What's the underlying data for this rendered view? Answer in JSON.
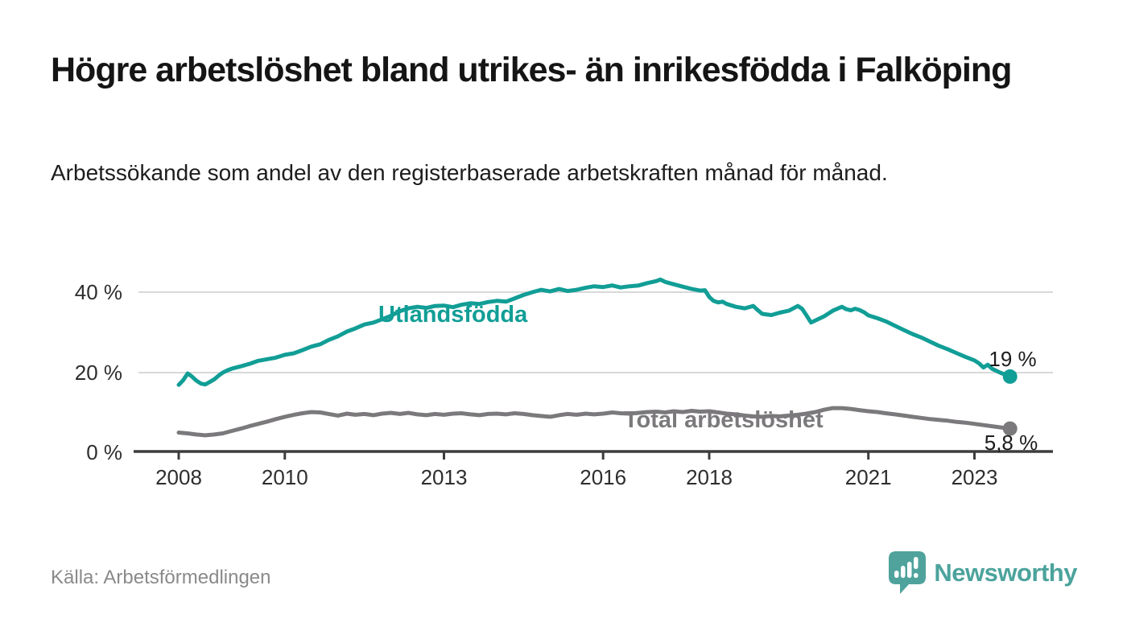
{
  "header": {
    "title": "Högre arbetslöshet bland utrikes- än inrikesfödda i Falköping",
    "subtitle": "Arbetssökande som andel av den registerbaserade arbetskraften månad för månad."
  },
  "footer": {
    "source": "Källa: Arbetsförmedlingen",
    "brand": "Newsworthy"
  },
  "colors": {
    "utlandsfodda": "#119E96",
    "total": "#7B797C",
    "grid": "#d8d8d8",
    "axis": "#3d3d3d",
    "brand_teal": "#4BA39C"
  },
  "chart_data": {
    "type": "line",
    "title": "Högre arbetslöshet bland utrikes- än inrikesfödda i Falköping",
    "subtitle": "Arbetssökande som andel av den registerbaserade arbetskraften månad för månad.",
    "xlabel": "",
    "ylabel": "",
    "unit": "%",
    "grid": "horizontal",
    "legend_position": "inline-labels",
    "xlim": [
      2007.1,
      2024.5
    ],
    "ylim": [
      0,
      47
    ],
    "x_ticks": [
      2008,
      2010,
      2013,
      2016,
      2018,
      2021,
      2023
    ],
    "y_ticks": [
      {
        "value": 0,
        "label": "0 %"
      },
      {
        "value": 20,
        "label": "20 %"
      },
      {
        "value": 40,
        "label": "40 %"
      }
    ],
    "series": [
      {
        "name": "Utlandsfödda",
        "color": "#119E96",
        "end_label": "19 %",
        "end_value": 19,
        "points": [
          [
            2008.0,
            16.9
          ],
          [
            2008.08,
            18.0
          ],
          [
            2008.17,
            19.8
          ],
          [
            2008.25,
            19.0
          ],
          [
            2008.33,
            18.0
          ],
          [
            2008.42,
            17.2
          ],
          [
            2008.5,
            17.0
          ],
          [
            2008.58,
            17.6
          ],
          [
            2008.67,
            18.3
          ],
          [
            2008.75,
            19.2
          ],
          [
            2008.83,
            20.0
          ],
          [
            2008.92,
            20.6
          ],
          [
            2009.0,
            21.0
          ],
          [
            2009.17,
            21.6
          ],
          [
            2009.33,
            22.2
          ],
          [
            2009.5,
            23.0
          ],
          [
            2009.67,
            23.4
          ],
          [
            2009.83,
            23.8
          ],
          [
            2010.0,
            24.5
          ],
          [
            2010.17,
            24.9
          ],
          [
            2010.33,
            25.7
          ],
          [
            2010.5,
            26.6
          ],
          [
            2010.67,
            27.2
          ],
          [
            2010.83,
            28.3
          ],
          [
            2011.0,
            29.2
          ],
          [
            2011.17,
            30.4
          ],
          [
            2011.33,
            31.2
          ],
          [
            2011.5,
            32.2
          ],
          [
            2011.67,
            32.7
          ],
          [
            2011.83,
            33.5
          ],
          [
            2012.0,
            34.4
          ],
          [
            2012.17,
            35.6
          ],
          [
            2012.33,
            36.3
          ],
          [
            2012.5,
            36.7
          ],
          [
            2012.67,
            36.4
          ],
          [
            2012.83,
            36.9
          ],
          [
            2013.0,
            37.0
          ],
          [
            2013.17,
            36.6
          ],
          [
            2013.33,
            37.2
          ],
          [
            2013.5,
            37.6
          ],
          [
            2013.67,
            37.4
          ],
          [
            2013.83,
            37.9
          ],
          [
            2014.0,
            38.2
          ],
          [
            2014.17,
            38.0
          ],
          [
            2014.33,
            38.8
          ],
          [
            2014.5,
            39.7
          ],
          [
            2014.67,
            40.4
          ],
          [
            2014.83,
            41.0
          ],
          [
            2015.0,
            40.6
          ],
          [
            2015.17,
            41.2
          ],
          [
            2015.33,
            40.7
          ],
          [
            2015.5,
            41.0
          ],
          [
            2015.67,
            41.5
          ],
          [
            2015.83,
            41.9
          ],
          [
            2016.0,
            41.7
          ],
          [
            2016.17,
            42.1
          ],
          [
            2016.33,
            41.6
          ],
          [
            2016.5,
            41.9
          ],
          [
            2016.67,
            42.1
          ],
          [
            2016.83,
            42.7
          ],
          [
            2017.0,
            43.2
          ],
          [
            2017.08,
            43.6
          ],
          [
            2017.17,
            43.0
          ],
          [
            2017.33,
            42.4
          ],
          [
            2017.5,
            41.8
          ],
          [
            2017.67,
            41.2
          ],
          [
            2017.83,
            40.8
          ],
          [
            2017.92,
            40.9
          ],
          [
            2018.0,
            39.2
          ],
          [
            2018.08,
            38.2
          ],
          [
            2018.17,
            37.8
          ],
          [
            2018.25,
            38.0
          ],
          [
            2018.33,
            37.4
          ],
          [
            2018.5,
            36.7
          ],
          [
            2018.67,
            36.3
          ],
          [
            2018.83,
            36.9
          ],
          [
            2018.92,
            35.8
          ],
          [
            2019.0,
            34.9
          ],
          [
            2019.17,
            34.6
          ],
          [
            2019.33,
            35.2
          ],
          [
            2019.5,
            35.7
          ],
          [
            2019.67,
            36.9
          ],
          [
            2019.75,
            36.2
          ],
          [
            2019.83,
            34.6
          ],
          [
            2019.92,
            32.7
          ],
          [
            2020.0,
            33.2
          ],
          [
            2020.17,
            34.3
          ],
          [
            2020.33,
            35.7
          ],
          [
            2020.5,
            36.7
          ],
          [
            2020.58,
            36.1
          ],
          [
            2020.67,
            35.8
          ],
          [
            2020.75,
            36.2
          ],
          [
            2020.83,
            35.9
          ],
          [
            2020.92,
            35.3
          ],
          [
            2021.0,
            34.5
          ],
          [
            2021.17,
            33.8
          ],
          [
            2021.33,
            33.0
          ],
          [
            2021.5,
            31.9
          ],
          [
            2021.67,
            30.8
          ],
          [
            2021.83,
            29.8
          ],
          [
            2022.0,
            28.9
          ],
          [
            2022.17,
            27.8
          ],
          [
            2022.33,
            26.8
          ],
          [
            2022.5,
            25.9
          ],
          [
            2022.67,
            24.9
          ],
          [
            2022.83,
            24.0
          ],
          [
            2023.0,
            23.1
          ],
          [
            2023.08,
            22.4
          ],
          [
            2023.17,
            21.3
          ],
          [
            2023.25,
            22.0
          ],
          [
            2023.33,
            21.0
          ],
          [
            2023.42,
            20.4
          ],
          [
            2023.5,
            19.9
          ],
          [
            2023.58,
            19.5
          ],
          [
            2023.67,
            19.0
          ]
        ]
      },
      {
        "name": "Total arbetslöshet",
        "color": "#7B797C",
        "end_label": "5,8 %",
        "end_value": 5.8,
        "points": [
          [
            2008.0,
            4.8
          ],
          [
            2008.17,
            4.6
          ],
          [
            2008.33,
            4.3
          ],
          [
            2008.5,
            4.1
          ],
          [
            2008.67,
            4.3
          ],
          [
            2008.83,
            4.6
          ],
          [
            2009.0,
            5.2
          ],
          [
            2009.17,
            5.8
          ],
          [
            2009.33,
            6.4
          ],
          [
            2009.5,
            7.0
          ],
          [
            2009.67,
            7.6
          ],
          [
            2009.83,
            8.2
          ],
          [
            2010.0,
            8.8
          ],
          [
            2010.17,
            9.3
          ],
          [
            2010.33,
            9.7
          ],
          [
            2010.5,
            10.0
          ],
          [
            2010.67,
            9.9
          ],
          [
            2010.83,
            9.5
          ],
          [
            2011.0,
            9.1
          ],
          [
            2011.17,
            9.6
          ],
          [
            2011.33,
            9.3
          ],
          [
            2011.5,
            9.5
          ],
          [
            2011.67,
            9.2
          ],
          [
            2011.83,
            9.6
          ],
          [
            2012.0,
            9.8
          ],
          [
            2012.17,
            9.5
          ],
          [
            2012.33,
            9.8
          ],
          [
            2012.5,
            9.4
          ],
          [
            2012.67,
            9.2
          ],
          [
            2012.83,
            9.5
          ],
          [
            2013.0,
            9.3
          ],
          [
            2013.17,
            9.6
          ],
          [
            2013.33,
            9.7
          ],
          [
            2013.5,
            9.4
          ],
          [
            2013.67,
            9.2
          ],
          [
            2013.83,
            9.5
          ],
          [
            2014.0,
            9.6
          ],
          [
            2014.17,
            9.4
          ],
          [
            2014.33,
            9.7
          ],
          [
            2014.5,
            9.5
          ],
          [
            2014.67,
            9.2
          ],
          [
            2014.83,
            9.0
          ],
          [
            2015.0,
            8.8
          ],
          [
            2015.17,
            9.2
          ],
          [
            2015.33,
            9.5
          ],
          [
            2015.5,
            9.3
          ],
          [
            2015.67,
            9.6
          ],
          [
            2015.83,
            9.4
          ],
          [
            2016.0,
            9.6
          ],
          [
            2016.17,
            9.9
          ],
          [
            2016.33,
            9.7
          ],
          [
            2016.5,
            9.6
          ],
          [
            2016.67,
            9.8
          ],
          [
            2016.83,
            10.0
          ],
          [
            2017.0,
            10.1
          ],
          [
            2017.17,
            9.9
          ],
          [
            2017.33,
            10.2
          ],
          [
            2017.5,
            10.0
          ],
          [
            2017.67,
            10.3
          ],
          [
            2017.83,
            10.1
          ],
          [
            2018.0,
            10.2
          ],
          [
            2018.17,
            9.9
          ],
          [
            2018.33,
            9.6
          ],
          [
            2018.5,
            9.4
          ],
          [
            2018.67,
            9.1
          ],
          [
            2018.83,
            8.9
          ],
          [
            2019.0,
            8.8
          ],
          [
            2019.17,
            9.0
          ],
          [
            2019.33,
            8.9
          ],
          [
            2019.5,
            9.1
          ],
          [
            2019.67,
            9.3
          ],
          [
            2019.83,
            9.6
          ],
          [
            2020.0,
            10.0
          ],
          [
            2020.17,
            10.6
          ],
          [
            2020.33,
            11.0
          ],
          [
            2020.5,
            11.0
          ],
          [
            2020.67,
            10.8
          ],
          [
            2020.83,
            10.5
          ],
          [
            2021.0,
            10.2
          ],
          [
            2021.17,
            10.0
          ],
          [
            2021.33,
            9.7
          ],
          [
            2021.5,
            9.4
          ],
          [
            2021.67,
            9.1
          ],
          [
            2021.83,
            8.8
          ],
          [
            2022.0,
            8.5
          ],
          [
            2022.17,
            8.2
          ],
          [
            2022.33,
            8.0
          ],
          [
            2022.5,
            7.8
          ],
          [
            2022.67,
            7.5
          ],
          [
            2022.83,
            7.3
          ],
          [
            2023.0,
            7.0
          ],
          [
            2023.17,
            6.7
          ],
          [
            2023.33,
            6.4
          ],
          [
            2023.5,
            6.1
          ],
          [
            2023.67,
            5.8
          ]
        ]
      }
    ]
  }
}
